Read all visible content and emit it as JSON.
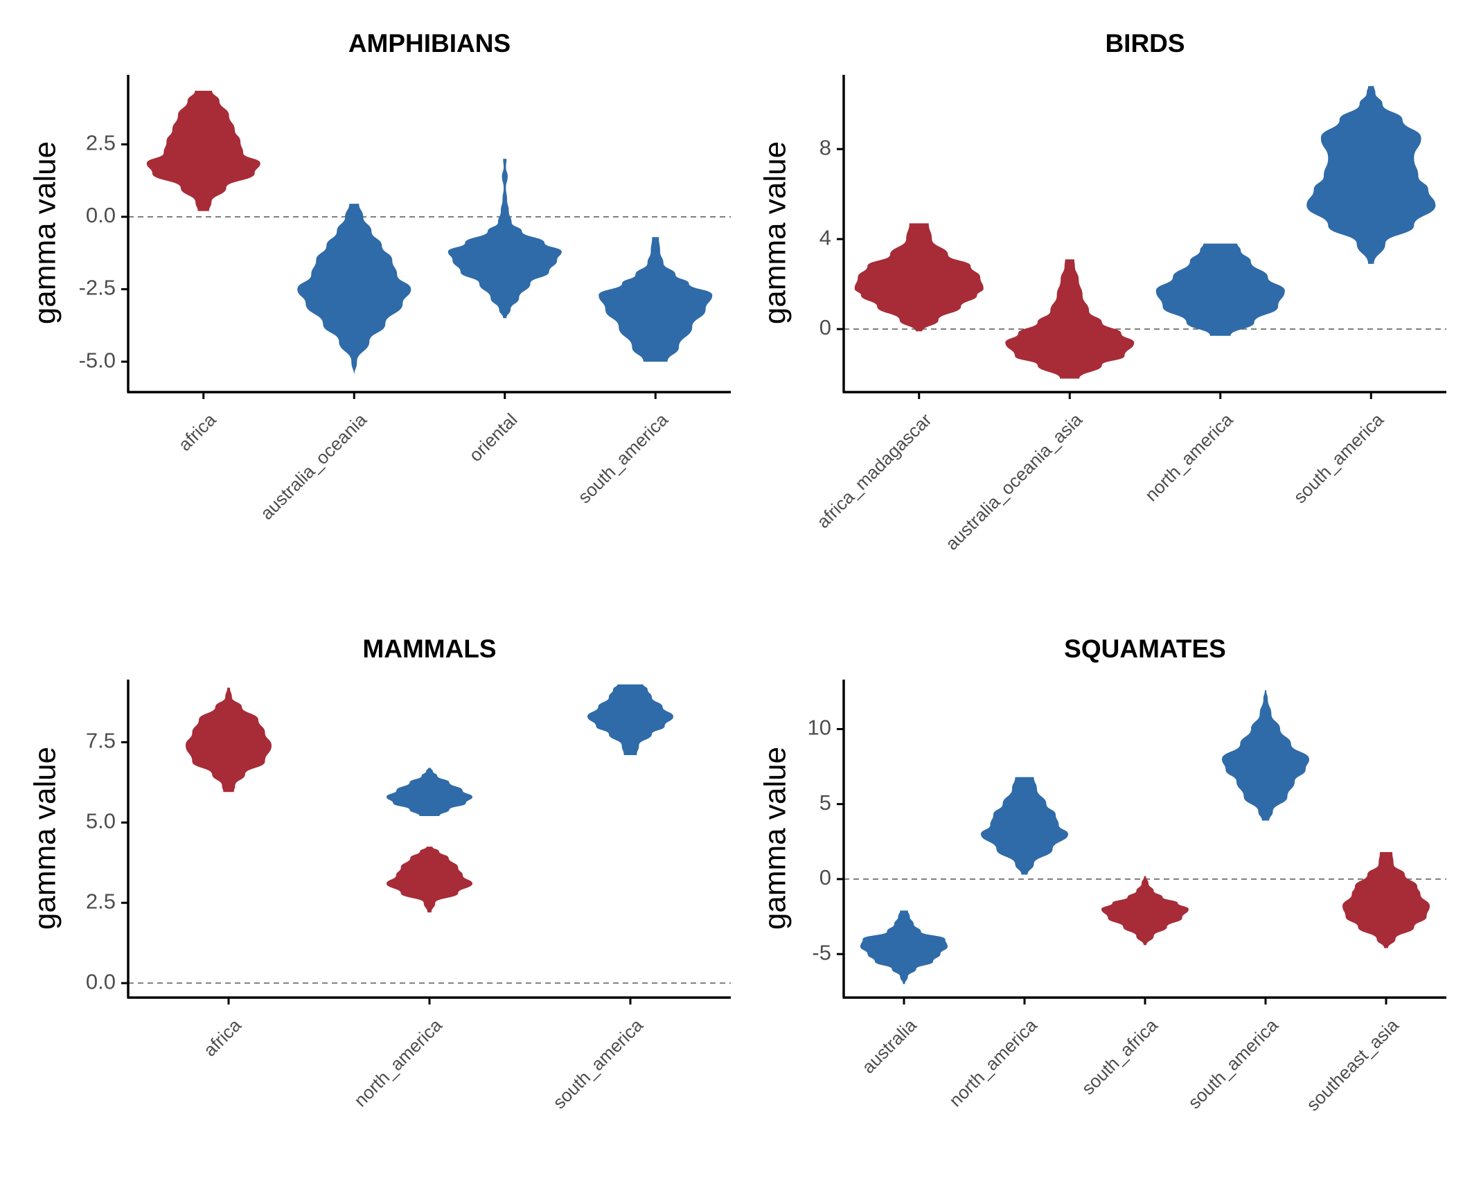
{
  "chart_data": [
    {
      "type": "violin",
      "title": "AMPHIBIANS",
      "ylabel": "gamma value",
      "xlabel": "",
      "ylim": [
        -6.05,
        4.9
      ],
      "yticks": [
        -5.0,
        -2.5,
        0.0,
        2.5
      ],
      "ytick_labels": [
        "-5.0",
        "-2.5",
        "0.0",
        "2.5"
      ],
      "reference_line": 0,
      "categories": [
        "africa",
        "australia_oceania",
        "oriental",
        "south_america"
      ],
      "violins": [
        {
          "category": "africa",
          "group": "red",
          "min": 0.2,
          "max": 4.35,
          "density": [
            [
              0.2,
              0.1
            ],
            [
              0.5,
              0.14
            ],
            [
              1.0,
              0.4
            ],
            [
              1.5,
              0.9
            ],
            [
              1.85,
              1.0
            ],
            [
              2.2,
              0.7
            ],
            [
              2.6,
              0.65
            ],
            [
              3.0,
              0.55
            ],
            [
              3.5,
              0.45
            ],
            [
              4.0,
              0.28
            ],
            [
              4.35,
              0.15
            ]
          ]
        },
        {
          "category": "australia_oceania",
          "group": "blue",
          "min": -5.5,
          "max": 0.45,
          "density": [
            [
              -5.5,
              0.0
            ],
            [
              -5.0,
              0.04
            ],
            [
              -4.3,
              0.22
            ],
            [
              -3.7,
              0.45
            ],
            [
              -3.0,
              0.7
            ],
            [
              -2.5,
              0.82
            ],
            [
              -2.0,
              0.62
            ],
            [
              -1.5,
              0.55
            ],
            [
              -1.0,
              0.4
            ],
            [
              -0.5,
              0.25
            ],
            [
              0.0,
              0.13
            ],
            [
              0.45,
              0.07
            ]
          ]
        },
        {
          "category": "oriental",
          "group": "blue",
          "min": -3.5,
          "max": 2.0,
          "density": [
            [
              -3.5,
              0.03
            ],
            [
              -3.2,
              0.1
            ],
            [
              -2.8,
              0.25
            ],
            [
              -2.3,
              0.45
            ],
            [
              -1.9,
              0.78
            ],
            [
              -1.5,
              0.92
            ],
            [
              -1.2,
              1.0
            ],
            [
              -0.9,
              0.7
            ],
            [
              -0.5,
              0.3
            ],
            [
              -0.2,
              0.12
            ],
            [
              0.2,
              0.07
            ],
            [
              0.6,
              0.04
            ],
            [
              1.0,
              0.02
            ],
            [
              1.4,
              0.05
            ],
            [
              1.7,
              0.02
            ],
            [
              2.0,
              0.03
            ]
          ]
        },
        {
          "category": "south_america",
          "group": "blue",
          "min": -5.0,
          "max": -0.7,
          "density": [
            [
              -5.0,
              0.18
            ],
            [
              -4.5,
              0.35
            ],
            [
              -3.8,
              0.55
            ],
            [
              -3.2,
              0.75
            ],
            [
              -2.7,
              0.85
            ],
            [
              -2.3,
              0.5
            ],
            [
              -2.0,
              0.3
            ],
            [
              -1.6,
              0.12
            ],
            [
              -1.2,
              0.07
            ],
            [
              -0.7,
              0.05
            ]
          ]
        }
      ]
    },
    {
      "type": "violin",
      "title": "BIRDS",
      "ylabel": "gamma value",
      "xlabel": "",
      "ylim": [
        -2.8,
        11.3
      ],
      "yticks": [
        0,
        4,
        8
      ],
      "ytick_labels": [
        "0",
        "4",
        "8"
      ],
      "reference_line": 0,
      "categories": [
        "africa_madagascar",
        "australia_oceania_asia",
        "north_america",
        "south_america"
      ],
      "violins": [
        {
          "category": "africa_madagascar",
          "group": "red",
          "min": -0.1,
          "max": 4.7,
          "density": [
            [
              -0.1,
              0.05
            ],
            [
              0.4,
              0.3
            ],
            [
              1.0,
              0.65
            ],
            [
              1.5,
              0.9
            ],
            [
              1.8,
              1.0
            ],
            [
              2.3,
              0.95
            ],
            [
              2.8,
              0.8
            ],
            [
              3.3,
              0.45
            ],
            [
              4.0,
              0.2
            ],
            [
              4.7,
              0.15
            ]
          ]
        },
        {
          "category": "australia_oceania_asia",
          "group": "red",
          "min": -2.2,
          "max": 3.1,
          "density": [
            [
              -2.2,
              0.15
            ],
            [
              -1.6,
              0.5
            ],
            [
              -1.2,
              0.85
            ],
            [
              -0.6,
              1.0
            ],
            [
              -0.2,
              0.8
            ],
            [
              0.3,
              0.5
            ],
            [
              0.8,
              0.3
            ],
            [
              1.5,
              0.2
            ],
            [
              2.2,
              0.14
            ],
            [
              2.8,
              0.08
            ],
            [
              3.1,
              0.07
            ]
          ]
        },
        {
          "category": "north_america",
          "group": "blue",
          "min": -0.3,
          "max": 3.8,
          "density": [
            [
              -0.3,
              0.15
            ],
            [
              0.3,
              0.5
            ],
            [
              1.0,
              0.85
            ],
            [
              1.7,
              0.95
            ],
            [
              2.3,
              0.7
            ],
            [
              3.0,
              0.45
            ],
            [
              3.5,
              0.3
            ],
            [
              3.8,
              0.25
            ]
          ]
        },
        {
          "category": "south_america",
          "group": "blue",
          "min": 2.9,
          "max": 10.8,
          "density": [
            [
              2.9,
              0.02
            ],
            [
              3.8,
              0.1
            ],
            [
              4.6,
              0.3
            ],
            [
              5.5,
              0.45
            ],
            [
              6.2,
              0.4
            ],
            [
              6.8,
              0.33
            ],
            [
              7.6,
              0.3
            ],
            [
              8.5,
              0.35
            ],
            [
              9.3,
              0.22
            ],
            [
              10.0,
              0.08
            ],
            [
              10.5,
              0.03
            ],
            [
              10.8,
              0.02
            ]
          ]
        }
      ]
    },
    {
      "type": "violin",
      "title": "MAMMALS",
      "ylabel": "gamma value",
      "xlabel": "",
      "ylim": [
        -0.45,
        9.45
      ],
      "yticks": [
        0.0,
        2.5,
        5.0,
        7.5
      ],
      "ytick_labels": [
        "0.0",
        "2.5",
        "5.0",
        "7.5"
      ],
      "reference_line": 0,
      "categories": [
        "africa",
        "north_america",
        "south_america"
      ],
      "violins": [
        {
          "category": "africa",
          "group": "red",
          "min": 5.95,
          "max": 9.2,
          "density": [
            [
              5.95,
              0.08
            ],
            [
              6.15,
              0.1
            ],
            [
              6.5,
              0.25
            ],
            [
              6.9,
              0.55
            ],
            [
              7.4,
              0.65
            ],
            [
              7.8,
              0.55
            ],
            [
              8.2,
              0.45
            ],
            [
              8.6,
              0.2
            ],
            [
              8.9,
              0.05
            ],
            [
              9.2,
              0.02
            ]
          ]
        },
        {
          "category": "north_america",
          "group": "blue",
          "min": 5.2,
          "max": 6.7,
          "density": [
            [
              5.2,
              0.15
            ],
            [
              5.4,
              0.3
            ],
            [
              5.6,
              0.55
            ],
            [
              5.8,
              0.65
            ],
            [
              6.0,
              0.5
            ],
            [
              6.25,
              0.3
            ],
            [
              6.45,
              0.12
            ],
            [
              6.6,
              0.05
            ],
            [
              6.7,
              0.02
            ]
          ]
        },
        {
          "category": "north_america",
          "group": "red",
          "min": 2.2,
          "max": 4.25,
          "density": [
            [
              2.2,
              0.02
            ],
            [
              2.5,
              0.06
            ],
            [
              2.8,
              0.3
            ],
            [
              3.1,
              0.45
            ],
            [
              3.35,
              0.35
            ],
            [
              3.6,
              0.3
            ],
            [
              3.9,
              0.2
            ],
            [
              4.1,
              0.1
            ],
            [
              4.25,
              0.03
            ]
          ]
        },
        {
          "category": "south_america",
          "group": "blue",
          "min": 7.1,
          "max": 9.3,
          "density": [
            [
              7.1,
              0.15
            ],
            [
              7.4,
              0.2
            ],
            [
              7.75,
              0.5
            ],
            [
              8.0,
              0.8
            ],
            [
              8.3,
              1.0
            ],
            [
              8.6,
              0.75
            ],
            [
              8.9,
              0.5
            ],
            [
              9.15,
              0.4
            ],
            [
              9.3,
              0.3
            ]
          ]
        }
      ]
    },
    {
      "type": "violin",
      "title": "SQUAMATES",
      "ylabel": "gamma value",
      "xlabel": "",
      "ylim": [
        -7.9,
        13.3
      ],
      "yticks": [
        -5,
        0,
        5,
        10
      ],
      "ytick_labels": [
        "-5",
        "0",
        "5",
        "10"
      ],
      "reference_line": 0,
      "categories": [
        "australia",
        "north_america",
        "south_africa",
        "south_america",
        "southeast_asia"
      ],
      "violins": [
        {
          "category": "australia",
          "group": "blue",
          "min": -7.0,
          "max": -2.1,
          "density": [
            [
              -7.0,
              0.02
            ],
            [
              -6.5,
              0.08
            ],
            [
              -6.0,
              0.25
            ],
            [
              -5.5,
              0.6
            ],
            [
              -5.0,
              0.75
            ],
            [
              -4.5,
              0.9
            ],
            [
              -4.0,
              0.85
            ],
            [
              -3.5,
              0.35
            ],
            [
              -3.0,
              0.2
            ],
            [
              -2.5,
              0.12
            ],
            [
              -2.1,
              0.08
            ]
          ]
        },
        {
          "category": "north_america",
          "group": "blue",
          "min": 0.3,
          "max": 6.8,
          "density": [
            [
              0.3,
              0.05
            ],
            [
              1.0,
              0.15
            ],
            [
              2.0,
              0.45
            ],
            [
              3.0,
              0.7
            ],
            [
              3.6,
              0.55
            ],
            [
              4.3,
              0.5
            ],
            [
              5.0,
              0.35
            ],
            [
              6.0,
              0.2
            ],
            [
              6.8,
              0.15
            ]
          ]
        },
        {
          "category": "south_africa",
          "group": "red",
          "min": -4.4,
          "max": 0.2,
          "density": [
            [
              -4.4,
              0.03
            ],
            [
              -3.8,
              0.2
            ],
            [
              -3.2,
              0.5
            ],
            [
              -2.6,
              0.85
            ],
            [
              -2.0,
              1.0
            ],
            [
              -1.6,
              0.75
            ],
            [
              -1.2,
              0.4
            ],
            [
              -0.8,
              0.2
            ],
            [
              -0.3,
              0.08
            ],
            [
              0.2,
              0.02
            ]
          ]
        },
        {
          "category": "south_america",
          "group": "blue",
          "min": 3.9,
          "max": 12.6,
          "density": [
            [
              3.9,
              0.05
            ],
            [
              4.5,
              0.1
            ],
            [
              5.5,
              0.3
            ],
            [
              6.5,
              0.4
            ],
            [
              7.3,
              0.55
            ],
            [
              8.0,
              0.6
            ],
            [
              9.0,
              0.35
            ],
            [
              10.0,
              0.2
            ],
            [
              11.0,
              0.08
            ],
            [
              12.0,
              0.03
            ],
            [
              12.6,
              0.01
            ]
          ]
        },
        {
          "category": "southeast_asia",
          "group": "red",
          "min": -4.6,
          "max": 1.8,
          "density": [
            [
              -4.6,
              0.03
            ],
            [
              -4.0,
              0.15
            ],
            [
              -3.2,
              0.45
            ],
            [
              -2.5,
              0.65
            ],
            [
              -1.8,
              0.7
            ],
            [
              -1.0,
              0.55
            ],
            [
              -0.5,
              0.5
            ],
            [
              0.3,
              0.3
            ],
            [
              1.0,
              0.12
            ],
            [
              1.8,
              0.1
            ]
          ]
        }
      ]
    }
  ],
  "colors": {
    "red": "#a72c37",
    "blue": "#2f6ba8",
    "axis": "#000000",
    "tick_label": "#4d4d4d",
    "reference_line": "#7f7f7f"
  }
}
